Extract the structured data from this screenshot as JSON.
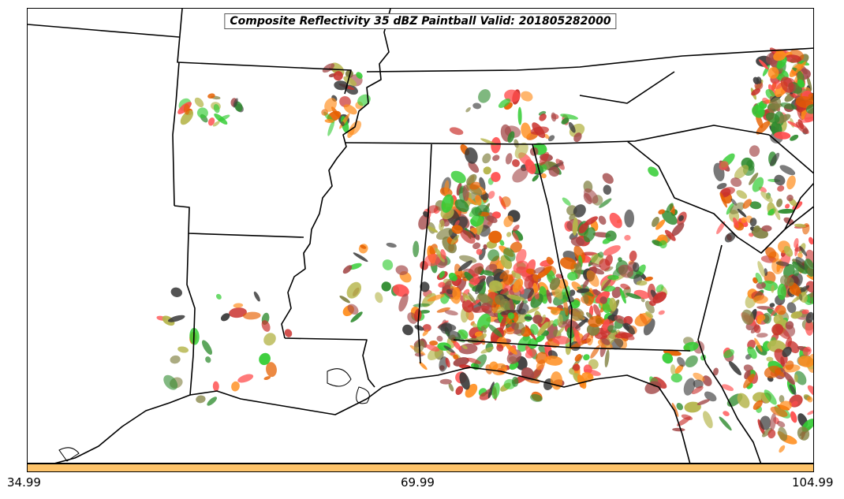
{
  "title": "Composite Reflectivity 35 dBZ Paintball Valid: 201805282000",
  "colorbar": {
    "color": "#fdc36a",
    "tick_labels": [
      "34.99",
      "69.99",
      "104.99"
    ]
  },
  "paintball_colors": [
    "#ff4d4d",
    "#ff8c1a",
    "#c9302c",
    "#b5b54a",
    "#3a3a3a",
    "#33cc33",
    "#808040",
    "#2e8b2e",
    "#e66000",
    "#a34848"
  ]
}
